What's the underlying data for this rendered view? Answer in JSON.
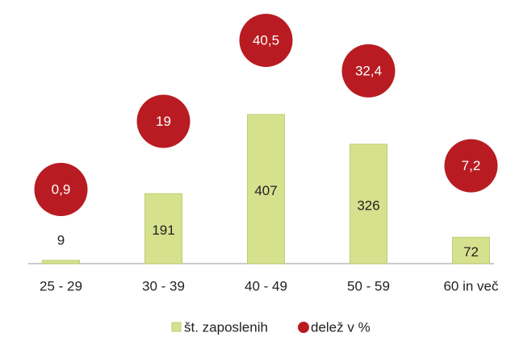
{
  "chart_data": {
    "type": "bar",
    "categories": [
      "25 - 29",
      "30 - 39",
      "40 - 49",
      "50 - 59",
      "60 in več"
    ],
    "series": [
      {
        "name": "št. zaposlenih",
        "color": "#d6e18e",
        "values": [
          9,
          191,
          407,
          326,
          72
        ]
      },
      {
        "name": "delež v %",
        "color": "#b81c22",
        "axis": "y2",
        "values": [
          0.9,
          19,
          40.5,
          32.4,
          7.2
        ],
        "value_labels": [
          "0,9",
          "19",
          "40,5",
          "32,4",
          "7,2"
        ]
      }
    ]
  }
}
